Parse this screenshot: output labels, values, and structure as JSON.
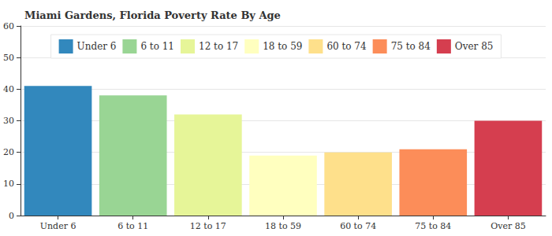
{
  "chart_data": {
    "type": "bar",
    "title": "Miami Gardens, Florida Poverty Rate By Age",
    "categories": [
      "Under 6",
      "6 to 11",
      "12 to 17",
      "18 to 59",
      "60 to 74",
      "75 to 84",
      "Over 85"
    ],
    "values": [
      41,
      38,
      32,
      19,
      20,
      21,
      30
    ],
    "colors": [
      "#3288bd",
      "#99d594",
      "#e6f598",
      "#ffffbf",
      "#fee08b",
      "#fc8d59",
      "#d53e4f"
    ],
    "ylim": [
      0,
      60
    ],
    "yticks": [
      0,
      10,
      20,
      30,
      40,
      50,
      60
    ],
    "grid": true,
    "legend": "top"
  }
}
